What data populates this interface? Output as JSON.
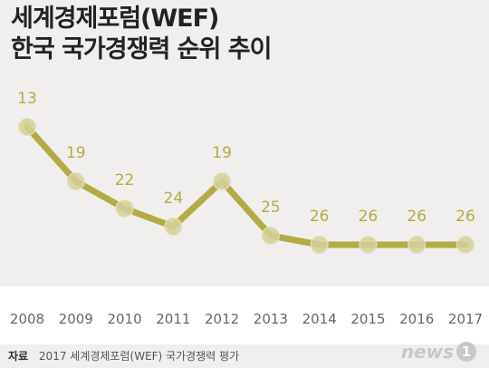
{
  "header": {
    "title_line1": "세계경제포럼(WEF)",
    "title_line2": "한국 국가경쟁력 순위 추이"
  },
  "chart_data": {
    "type": "line",
    "title": "세계경제포럼(WEF) 한국 국가경쟁력 순위 추이",
    "categories": [
      "2008",
      "2009",
      "2010",
      "2011",
      "2012",
      "2013",
      "2014",
      "2015",
      "2016",
      "2017"
    ],
    "series": [
      {
        "values": [
          13,
          19,
          22,
          24,
          19,
          25,
          26,
          26,
          26,
          26
        ]
      }
    ],
    "y_reversed": true,
    "ylim": [
      13,
      26
    ],
    "grid": false,
    "colors": {
      "line": "#b5ab45",
      "marker": "#d6d09a",
      "label": "#b5ab45"
    }
  },
  "footer": {
    "source_label": "자료",
    "source_text": "2017 세계경제포럼(WEF) 국가경쟁력 평가",
    "logo_text": "news",
    "logo_badge": "1"
  }
}
